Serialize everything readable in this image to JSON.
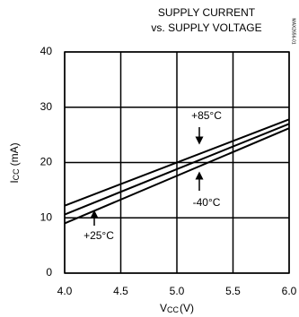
{
  "chart_data": {
    "type": "line",
    "title": [
      "SUPPLY CURRENT",
      "vs. SUPPLY VOLTAGE"
    ],
    "side_note": "MAX2656-01",
    "y_label": {
      "symbol": "I",
      "subscript": "CC",
      "unit": "(mA)"
    },
    "x_label": {
      "symbol": "V",
      "subscript": "CC",
      "unit": "(V)"
    },
    "x": [
      4,
      6
    ],
    "series": [
      {
        "name": "+85°C",
        "color": "#000000",
        "values": [
          12.2,
          27.8
        ]
      },
      {
        "name": "+25°C",
        "color": "#000000",
        "values": [
          10.6,
          27.0
        ]
      },
      {
        "name": "-40°C",
        "color": "#000000",
        "values": [
          9.0,
          26.2
        ]
      }
    ],
    "xlim": [
      4,
      6
    ],
    "xticks": [
      {
        "value": 4,
        "label": "4.0"
      },
      4.5,
      {
        "value": 5,
        "label": "5.0"
      },
      5.5,
      {
        "value": 6,
        "label": "6.0"
      }
    ],
    "ylim": [
      0,
      40
    ],
    "yticks": [
      0,
      10,
      20,
      30,
      40
    ],
    "grid": true
  }
}
